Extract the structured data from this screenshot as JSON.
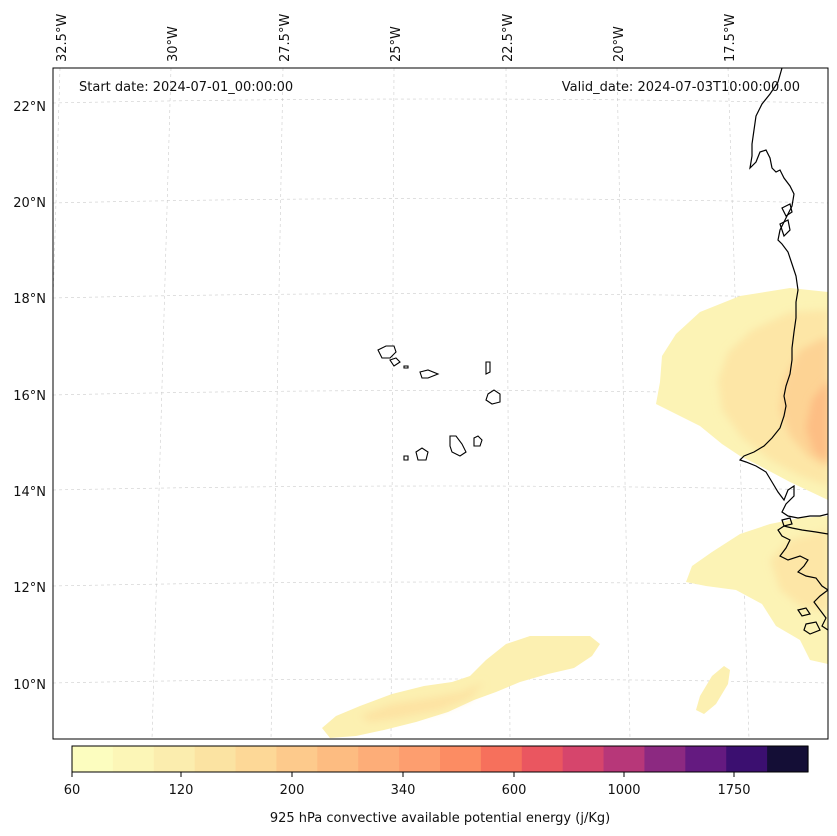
{
  "header": {
    "start_date": "Start date: 2024-07-01_00:00:00",
    "valid_date": "Valid_date: 2024-07-03T10:00:00.00"
  },
  "lon_labels": [
    "32.5°W",
    "30°W",
    "27.5°W",
    "25°W",
    "22.5°W",
    "20°W",
    "17.5°W"
  ],
  "lat_labels": [
    "22°N",
    "20°N",
    "18°N",
    "16°N",
    "14°N",
    "12°N",
    "10°N"
  ],
  "colorbar": {
    "label": "925 hPa convective available potential energy (j/Kg)",
    "ticks": [
      "60",
      "120",
      "200",
      "340",
      "600",
      "1000",
      "1750"
    ],
    "colors": [
      "#fcfdbf",
      "#fcf6b7",
      "#fbedae",
      "#fbe3a2",
      "#fdd897",
      "#fdca8c",
      "#fdbc81",
      "#fdad78",
      "#fd9e6f",
      "#fc8c63",
      "#f6705c",
      "#ea5660",
      "#d6456c",
      "#b73779",
      "#8c2981",
      "#641a80",
      "#3b0f70",
      "#140e36"
    ]
  },
  "map": {
    "gridlines": true,
    "coastlines": true,
    "field_colormap": "magma_r"
  }
}
